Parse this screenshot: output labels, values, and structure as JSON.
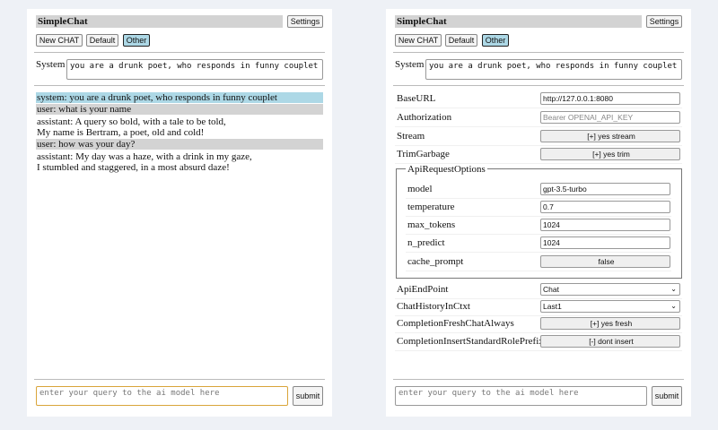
{
  "app": {
    "title": "SimpleChat",
    "settings_label": "Settings",
    "buttons": [
      "New CHAT",
      "Default",
      "Other"
    ],
    "selected_button": "Other",
    "system_label": "System",
    "system_prompt": "you are a drunk poet, who responds in funny couplet",
    "query_placeholder": "enter your query to the ai model here",
    "submit_label": "submit"
  },
  "chat": [
    {
      "role": "system",
      "text": "system: you are a drunk poet, who responds in funny couplet"
    },
    {
      "role": "user",
      "text": "user: what is your name"
    },
    {
      "role": "assistant",
      "lines": [
        "assistant: A query so bold, with a tale to be told,",
        "My name is Bertram, a poet, old and cold!"
      ]
    },
    {
      "role": "user",
      "text": "user: how was your day?"
    },
    {
      "role": "assistant",
      "lines": [
        "assistant: My day was a haze, with a drink in my gaze,",
        "I stumbled and staggered, in a most absurd daze!"
      ]
    }
  ],
  "settings": {
    "base_url": {
      "label": "BaseURL",
      "value": "http://127.0.0.1:8080"
    },
    "authorization": {
      "label": "Authorization",
      "placeholder": "Bearer OPENAI_API_KEY"
    },
    "stream": {
      "label": "Stream",
      "value": "[+] yes stream"
    },
    "trim_garbage": {
      "label": "TrimGarbage",
      "value": "[+] yes trim"
    },
    "api_request_options": {
      "legend": "ApiRequestOptions",
      "model": {
        "label": "model",
        "value": "gpt-3.5-turbo"
      },
      "temperature": {
        "label": "temperature",
        "value": "0.7"
      },
      "max_tokens": {
        "label": "max_tokens",
        "value": "1024"
      },
      "n_predict": {
        "label": "n_predict",
        "value": "1024"
      },
      "cache_prompt": {
        "label": "cache_prompt",
        "value": "false"
      }
    },
    "api_endpoint": {
      "label": "ApiEndPoint",
      "value": "Chat"
    },
    "chat_history": {
      "label": "ChatHistoryInCtxt",
      "value": "Last1"
    },
    "fresh_chat": {
      "label": "CompletionFreshChatAlways",
      "value": "[+] yes fresh"
    },
    "role_prefix": {
      "label": "CompletionInsertStandardRolePrefix",
      "value": "[-] dont insert"
    }
  },
  "colors": {
    "selected": "#add8e6",
    "user_bg": "#d3d3d3",
    "focus_border": "#d9a53a",
    "background": "#eef1f6"
  }
}
